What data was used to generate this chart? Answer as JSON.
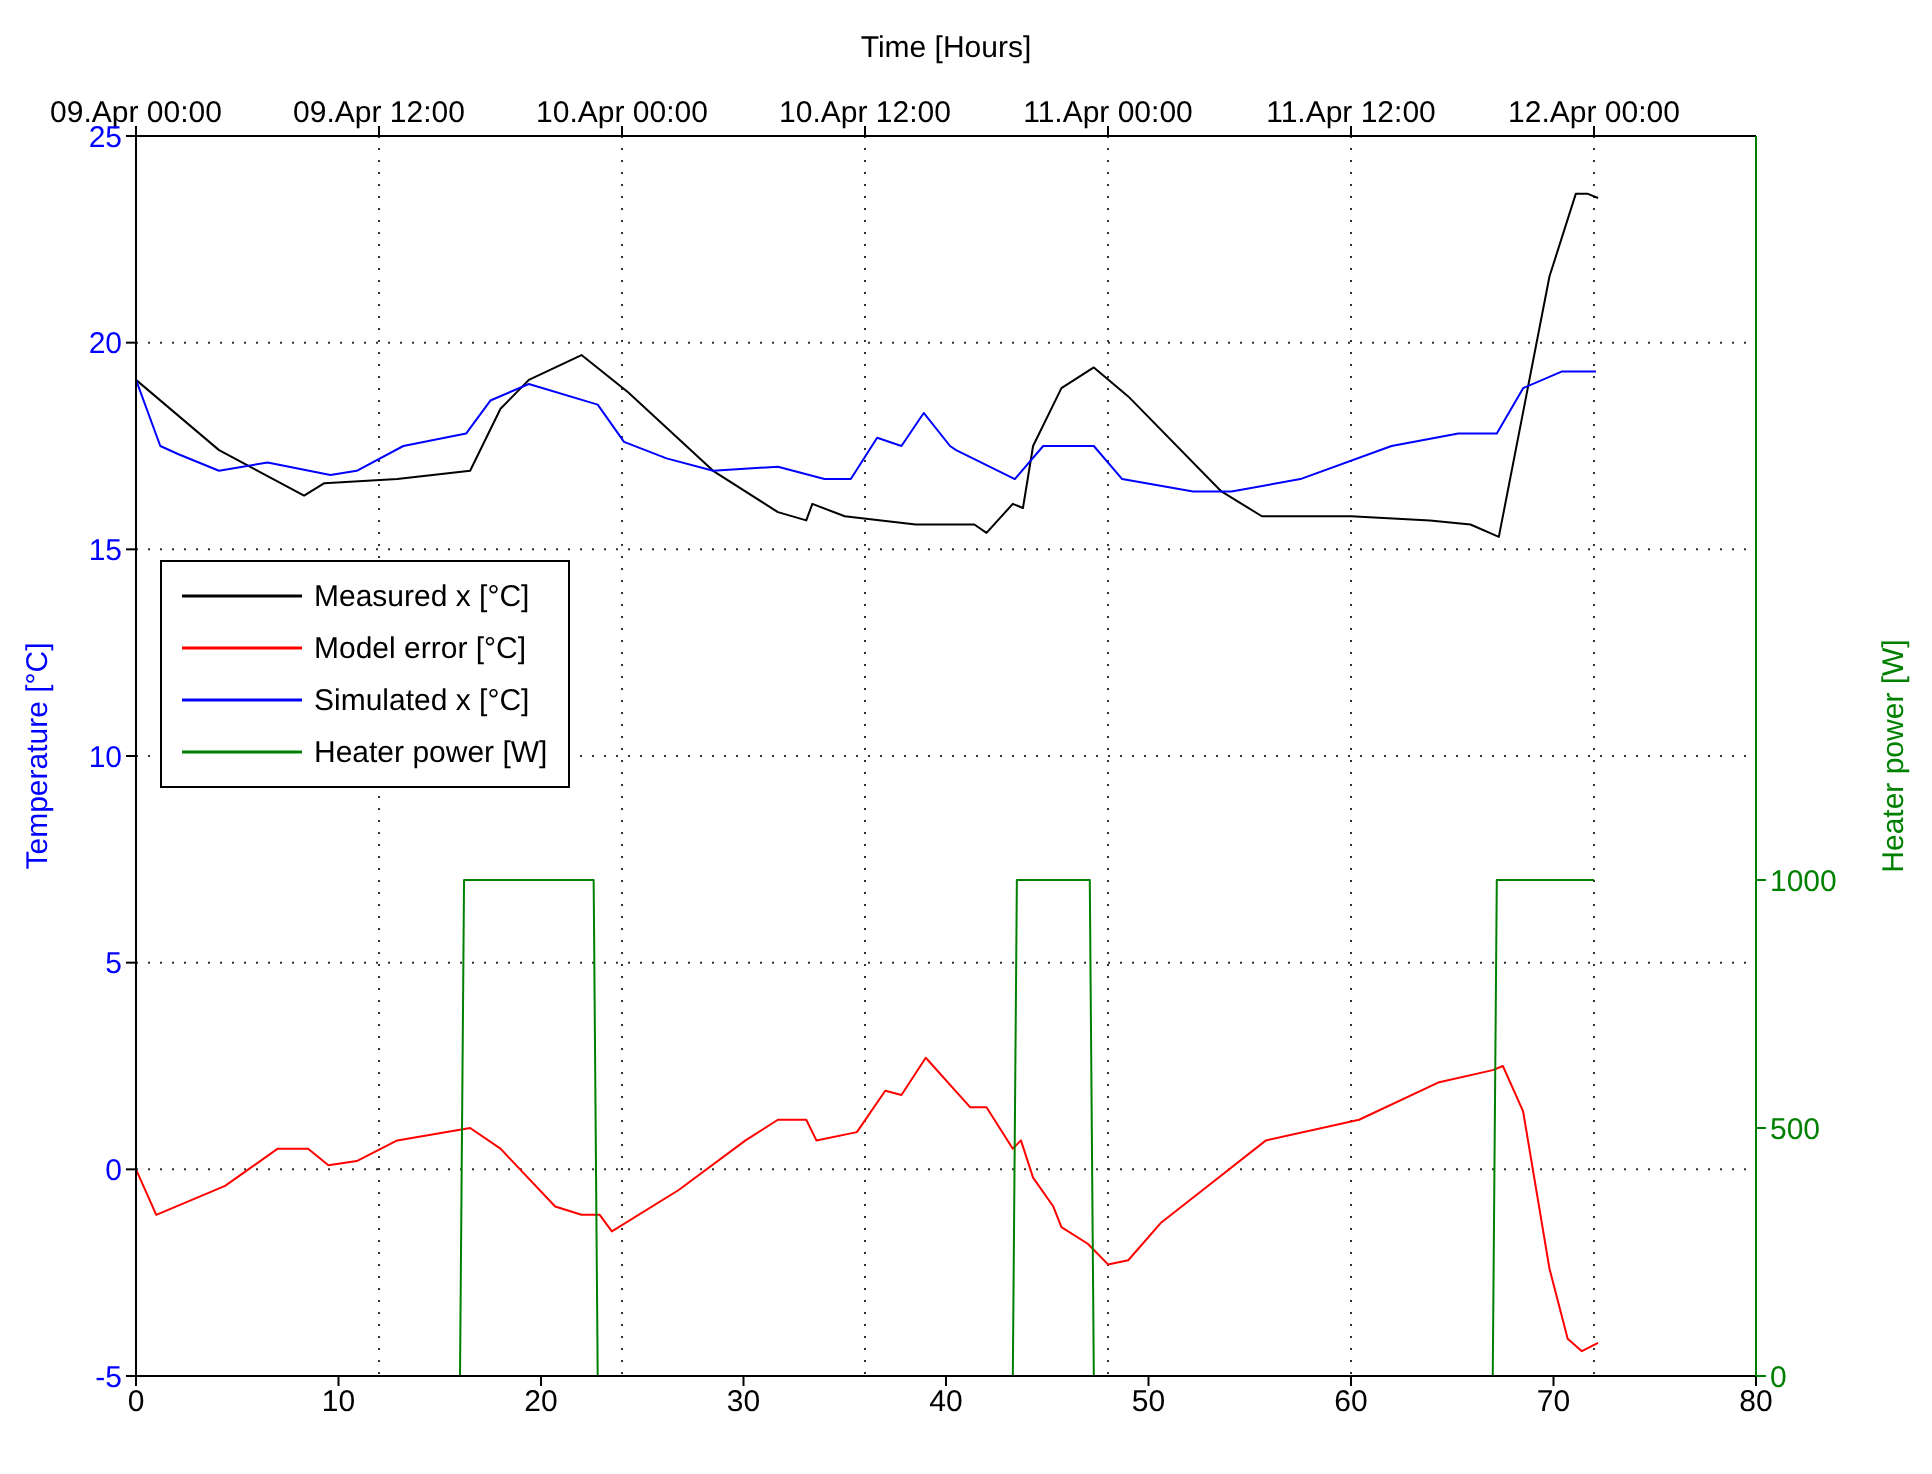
{
  "chart_data": {
    "type": "line",
    "x2label": "Time [Hours]",
    "ylabel": "Temperature [°C]",
    "y2label": "Heater power [W]",
    "xlim": [
      0,
      80
    ],
    "xticks": [
      0,
      10,
      20,
      30,
      40,
      50,
      60,
      70,
      80
    ],
    "x2lim": [
      "--04-09T00:00",
      "--04-12T08:00"
    ],
    "x2ticks": [
      {
        "value": "--04-09T00:00",
        "label": "09.Apr 00:00"
      },
      {
        "value": "--04-09T12:00",
        "label": "09.Apr 12:00"
      },
      {
        "value": "--04-10T00:00",
        "label": "10.Apr 00:00"
      },
      {
        "value": "--04-10T12:00",
        "label": "10.Apr 12:00"
      },
      {
        "value": "--04-11T00:00",
        "label": "11.Apr 00:00"
      },
      {
        "value": "--04-11T12:00",
        "label": "11.Apr 12:00"
      },
      {
        "value": "--04-12T00:00",
        "label": "12.Apr 00:00"
      }
    ],
    "ylim": [
      -5,
      25
    ],
    "yticks": [
      -5,
      0,
      5,
      10,
      15,
      20,
      25
    ],
    "y2lim": [
      0,
      2500
    ],
    "y2ticks": [
      0,
      500,
      1000
    ],
    "grid": true,
    "legend": "top left",
    "series": [
      {
        "name": "Measured x [°C]",
        "color": "#000000",
        "x": [
          0,
          4.1,
          8.3,
          9.3,
          12.9,
          16.5,
          18.0,
          19.4,
          22.0,
          24.3,
          28.5,
          31.7,
          33.1,
          33.4,
          35.0,
          38.5,
          39.2,
          41.4,
          42.0,
          43.3,
          43.8,
          44.3,
          45.7,
          47.3,
          49.0,
          53.6,
          55.6,
          60.0,
          63.9,
          65.9,
          67.3,
          69.8,
          71.1,
          71.7,
          72.2
        ],
        "values": [
          19.1,
          17.4,
          16.3,
          16.6,
          16.7,
          16.9,
          18.4,
          19.1,
          19.7,
          18.8,
          16.9,
          15.9,
          15.7,
          16.1,
          15.8,
          15.6,
          15.6,
          15.6,
          15.4,
          16.1,
          16.0,
          17.5,
          18.9,
          19.4,
          18.7,
          16.4,
          15.8,
          15.8,
          15.7,
          15.6,
          15.3,
          21.6,
          23.6,
          23.6,
          23.5
        ]
      },
      {
        "name": "Model error [°C]",
        "color": "#ff0000",
        "x": [
          0,
          1.0,
          4.4,
          7.0,
          8.5,
          9.5,
          10.9,
          12.9,
          16.5,
          18.0,
          20.7,
          22.0,
          22.9,
          23.5,
          26.8,
          30.1,
          31.7,
          33.1,
          33.6,
          35.6,
          37.0,
          37.8,
          39.0,
          41.2,
          42.0,
          43.3,
          43.7,
          44.3,
          45.3,
          45.7,
          47.0,
          48.0,
          49.0,
          50.6,
          53.2,
          55.8,
          60.4,
          64.3,
          67.0,
          67.5,
          68.5,
          69.8,
          70.7,
          71.4,
          72.2
        ],
        "values": [
          0,
          -1.1,
          -0.4,
          0.5,
          0.5,
          0.1,
          0.2,
          0.7,
          1.0,
          0.5,
          -0.9,
          -1.1,
          -1.1,
          -1.5,
          -0.5,
          0.7,
          1.2,
          1.2,
          0.7,
          0.9,
          1.9,
          1.8,
          2.7,
          1.5,
          1.5,
          0.5,
          0.7,
          -0.2,
          -0.9,
          -1.4,
          -1.8,
          -2.3,
          -2.2,
          -1.3,
          -0.3,
          0.7,
          1.2,
          2.1,
          2.4,
          2.5,
          1.4,
          -2.4,
          -4.1,
          -4.4,
          -4.2
        ]
      },
      {
        "name": "Simulated x [°C]",
        "color": "#0000ff",
        "x": [
          0,
          1.2,
          2.1,
          4.1,
          6.5,
          9.6,
          10.9,
          13.2,
          16.3,
          17.5,
          19.4,
          22.8,
          24.1,
          26.2,
          28.5,
          31.7,
          34.0,
          35.3,
          36.6,
          37.8,
          38.9,
          40.2,
          40.5,
          43.4,
          44.8,
          47.3,
          48.7,
          52.2,
          54.1,
          57.5,
          62.0,
          65.3,
          67.2,
          68.5,
          70.4,
          72.1
        ],
        "values": [
          19.1,
          17.5,
          17.3,
          16.9,
          17.1,
          16.8,
          16.9,
          17.5,
          17.8,
          18.6,
          19.0,
          18.5,
          17.6,
          17.2,
          16.9,
          17.0,
          16.7,
          16.7,
          17.7,
          17.5,
          18.3,
          17.5,
          17.4,
          16.7,
          17.5,
          17.5,
          16.7,
          16.4,
          16.4,
          16.7,
          17.5,
          17.8,
          17.8,
          18.9,
          19.3,
          19.3
        ]
      },
      {
        "name": "Heater power [W]",
        "color": "#008000",
        "axis": "y2",
        "x": [
          0,
          16.0,
          16.2,
          22.6,
          22.8,
          43.3,
          43.5,
          47.1,
          47.3,
          67.0,
          67.2,
          72.0
        ],
        "values": [
          0,
          0,
          1000,
          1000,
          0,
          0,
          1000,
          1000,
          0,
          0,
          1000,
          1000
        ]
      }
    ]
  }
}
